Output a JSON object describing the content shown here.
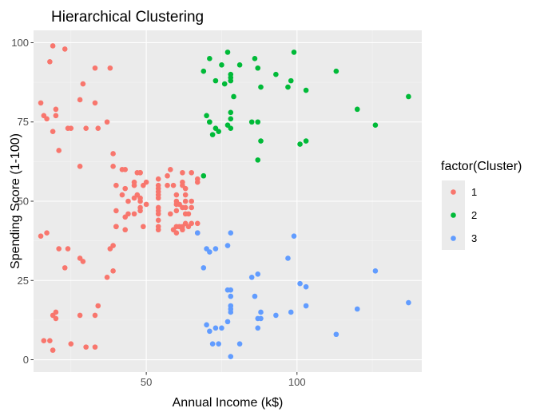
{
  "chart_data": {
    "type": "scatter",
    "title": "Hierarchical Clustering",
    "xlabel": "Annual Income (k$)",
    "ylabel": "Spending Score (1-100)",
    "xlim": [
      12.6,
      141.4
    ],
    "ylim": [
      -3.9,
      103.9
    ],
    "xticks": [
      50,
      100
    ],
    "yticks": [
      0,
      25,
      50,
      75,
      100
    ],
    "xtick_labels": [
      "50",
      "100"
    ],
    "ytick_labels": [
      "0",
      "25",
      "50",
      "75",
      "100"
    ],
    "grid": true,
    "background": "#ebebeb",
    "legend": {
      "title": "factor(Cluster)",
      "position": "right",
      "entries": [
        {
          "label": "1",
          "color": "#f8766d"
        },
        {
          "label": "2",
          "color": "#00ba38"
        },
        {
          "label": "3",
          "color": "#619cff"
        }
      ]
    },
    "series": [
      {
        "name": "1",
        "color": "#f8766d",
        "points": [
          [
            15,
            39
          ],
          [
            15,
            81
          ],
          [
            16,
            6
          ],
          [
            16,
            77
          ],
          [
            17,
            40
          ],
          [
            17,
            76
          ],
          [
            18,
            6
          ],
          [
            18,
            94
          ],
          [
            19,
            3
          ],
          [
            19,
            72
          ],
          [
            19,
            14
          ],
          [
            19,
            99
          ],
          [
            20,
            15
          ],
          [
            20,
            77
          ],
          [
            20,
            13
          ],
          [
            20,
            79
          ],
          [
            21,
            35
          ],
          [
            21,
            66
          ],
          [
            23,
            29
          ],
          [
            23,
            98
          ],
          [
            24,
            35
          ],
          [
            24,
            73
          ],
          [
            25,
            5
          ],
          [
            25,
            73
          ],
          [
            28,
            14
          ],
          [
            28,
            82
          ],
          [
            28,
            32
          ],
          [
            28,
            61
          ],
          [
            29,
            31
          ],
          [
            29,
            87
          ],
          [
            30,
            4
          ],
          [
            30,
            73
          ],
          [
            33,
            4
          ],
          [
            33,
            92
          ],
          [
            33,
            14
          ],
          [
            33,
            81
          ],
          [
            34,
            17
          ],
          [
            34,
            73
          ],
          [
            37,
            26
          ],
          [
            37,
            75
          ],
          [
            38,
            35
          ],
          [
            38,
            92
          ],
          [
            39,
            36
          ],
          [
            39,
            61
          ],
          [
            39,
            28
          ],
          [
            39,
            65
          ],
          [
            40,
            55
          ],
          [
            40,
            47
          ],
          [
            40,
            42
          ],
          [
            40,
            42
          ],
          [
            42,
            52
          ],
          [
            42,
            60
          ],
          [
            43,
            54
          ],
          [
            43,
            60
          ],
          [
            43,
            45
          ],
          [
            43,
            41
          ],
          [
            44,
            50
          ],
          [
            44,
            46
          ],
          [
            46,
            51
          ],
          [
            46,
            46
          ],
          [
            46,
            56
          ],
          [
            46,
            55
          ],
          [
            47,
            52
          ],
          [
            47,
            59
          ],
          [
            48,
            51
          ],
          [
            48,
            59
          ],
          [
            48,
            50
          ],
          [
            48,
            48
          ],
          [
            48,
            59
          ],
          [
            48,
            47
          ],
          [
            49,
            55
          ],
          [
            49,
            42
          ],
          [
            50,
            49
          ],
          [
            50,
            56
          ],
          [
            54,
            47
          ],
          [
            54,
            54
          ],
          [
            54,
            53
          ],
          [
            54,
            48
          ],
          [
            54,
            52
          ],
          [
            54,
            42
          ],
          [
            54,
            51
          ],
          [
            54,
            55
          ],
          [
            54,
            41
          ],
          [
            54,
            44
          ],
          [
            54,
            57
          ],
          [
            54,
            46
          ],
          [
            57,
            58
          ],
          [
            57,
            55
          ],
          [
            58,
            60
          ],
          [
            58,
            46
          ],
          [
            59,
            55
          ],
          [
            59,
            41
          ],
          [
            60,
            49
          ],
          [
            60,
            40
          ],
          [
            60,
            42
          ],
          [
            60,
            52
          ],
          [
            60,
            47
          ],
          [
            60,
            50
          ],
          [
            61,
            42
          ],
          [
            61,
            49
          ],
          [
            62,
            41
          ],
          [
            62,
            48
          ],
          [
            62,
            59
          ],
          [
            62,
            55
          ],
          [
            62,
            56
          ],
          [
            62,
            42
          ],
          [
            63,
            50
          ],
          [
            63,
            46
          ],
          [
            63,
            43
          ],
          [
            63,
            48
          ],
          [
            63,
            52
          ],
          [
            63,
            54
          ],
          [
            64,
            42
          ],
          [
            64,
            46
          ],
          [
            65,
            48
          ],
          [
            65,
            50
          ],
          [
            65,
            43
          ],
          [
            65,
            59
          ],
          [
            67,
            43
          ],
          [
            67,
            57
          ],
          [
            67,
            56
          ],
          [
            67,
            40
          ]
        ]
      },
      {
        "name": "2",
        "color": "#00ba38",
        "points": [
          [
            69,
            58
          ],
          [
            69,
            91
          ],
          [
            70,
            77
          ],
          [
            71,
            95
          ],
          [
            71,
            75
          ],
          [
            71,
            75
          ],
          [
            72,
            71
          ],
          [
            73,
            88
          ],
          [
            73,
            73
          ],
          [
            74,
            72
          ],
          [
            75,
            93
          ],
          [
            76,
            87
          ],
          [
            77,
            97
          ],
          [
            77,
            74
          ],
          [
            78,
            90
          ],
          [
            78,
            88
          ],
          [
            78,
            76
          ],
          [
            78,
            89
          ],
          [
            78,
            78
          ],
          [
            78,
            73
          ],
          [
            79,
            83
          ],
          [
            81,
            93
          ],
          [
            85,
            75
          ],
          [
            86,
            95
          ],
          [
            87,
            63
          ],
          [
            87,
            75
          ],
          [
            87,
            92
          ],
          [
            88,
            86
          ],
          [
            88,
            69
          ],
          [
            93,
            90
          ],
          [
            97,
            86
          ],
          [
            98,
            88
          ],
          [
            99,
            97
          ],
          [
            101,
            68
          ],
          [
            103,
            85
          ],
          [
            103,
            69
          ],
          [
            113,
            91
          ],
          [
            120,
            79
          ],
          [
            126,
            74
          ],
          [
            137,
            83
          ]
        ]
      },
      {
        "name": "3",
        "color": "#619cff",
        "points": [
          [
            67,
            40
          ],
          [
            69,
            29
          ],
          [
            70,
            35
          ],
          [
            70,
            11
          ],
          [
            71,
            34
          ],
          [
            71,
            9
          ],
          [
            72,
            5
          ],
          [
            73,
            35
          ],
          [
            73,
            10
          ],
          [
            74,
            5
          ],
          [
            75,
            10
          ],
          [
            77,
            12
          ],
          [
            77,
            36
          ],
          [
            77,
            22
          ],
          [
            78,
            17
          ],
          [
            78,
            20
          ],
          [
            78,
            16
          ],
          [
            78,
            1
          ],
          [
            78,
            15
          ],
          [
            78,
            40
          ],
          [
            78,
            22
          ],
          [
            81,
            5
          ],
          [
            85,
            26
          ],
          [
            86,
            20
          ],
          [
            87,
            27
          ],
          [
            87,
            13
          ],
          [
            87,
            10
          ],
          [
            88,
            15
          ],
          [
            88,
            13
          ],
          [
            93,
            14
          ],
          [
            97,
            32
          ],
          [
            98,
            15
          ],
          [
            99,
            39
          ],
          [
            101,
            24
          ],
          [
            103,
            17
          ],
          [
            103,
            23
          ],
          [
            113,
            8
          ],
          [
            120,
            16
          ],
          [
            126,
            28
          ],
          [
            137,
            18
          ]
        ]
      }
    ]
  }
}
